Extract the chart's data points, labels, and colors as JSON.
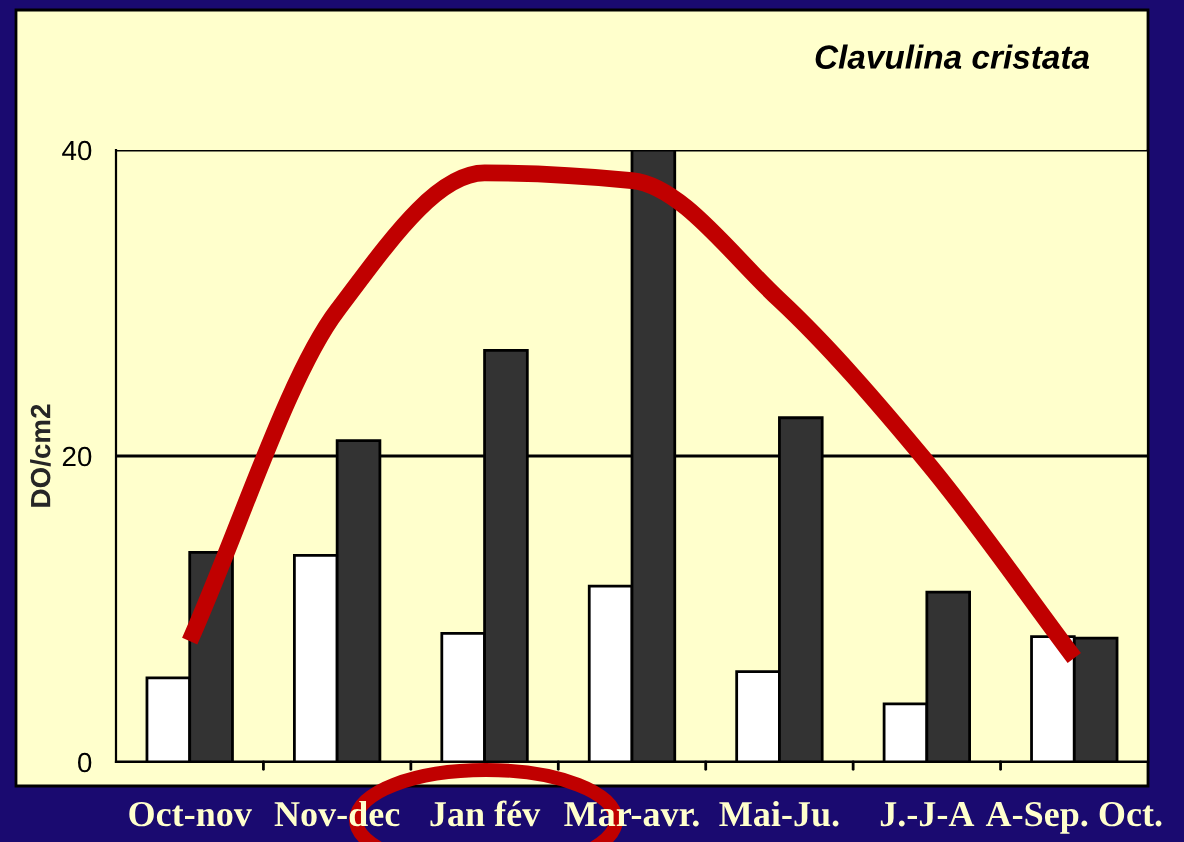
{
  "chart_data": {
    "type": "bar",
    "title": "Clavulina cristata",
    "ylabel": "DO/cm2",
    "categories": [
      "Oct-nov",
      "Nov-dec",
      "Jan fév",
      "Mar-avr.",
      "Mai-Ju.",
      "J.-J-A",
      "A-Sep. Oct."
    ],
    "series": [
      {
        "color": "#ffffff",
        "values": [
          5.5,
          13.5,
          8.4,
          11.5,
          5.9,
          3.8,
          8.2
        ]
      },
      {
        "color": "#333333",
        "values": [
          13.7,
          21.0,
          26.9,
          40,
          22.5,
          11.1,
          8.1
        ]
      },
      {
        "type": "line",
        "color": "#c00000",
        "values": [
          7.9,
          29.5,
          38.5,
          38.0,
          30.2,
          19.6,
          6.8
        ]
      }
    ],
    "ylim": [
      0,
      40
    ],
    "yticks": [
      0,
      20,
      40
    ],
    "grid": "y",
    "legend": false
  }
}
